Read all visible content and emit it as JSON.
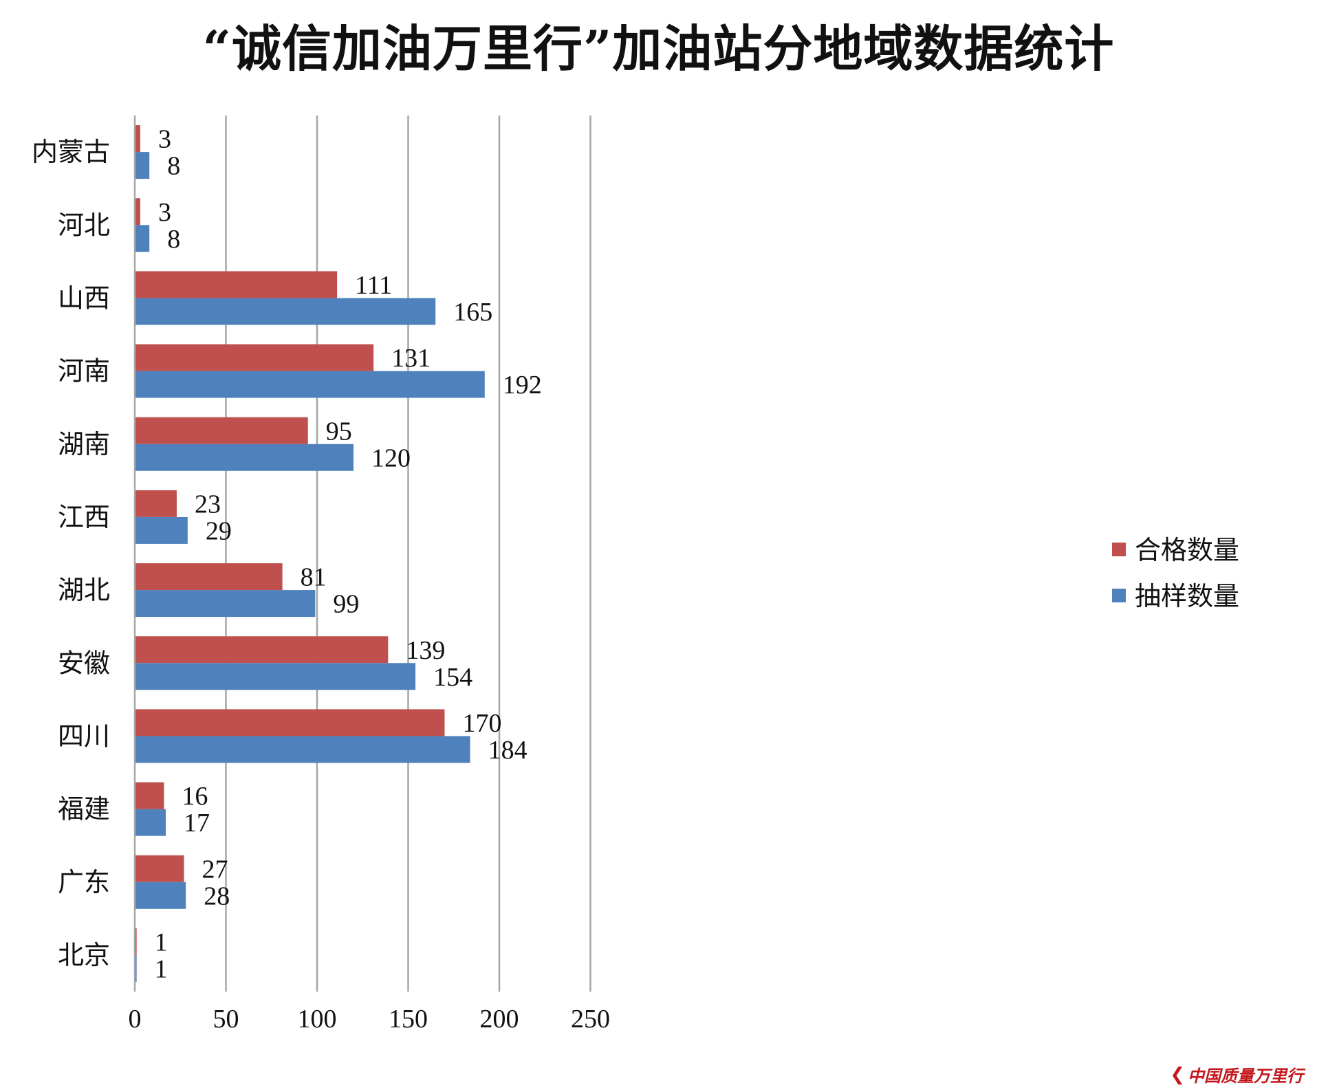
{
  "chart_data": {
    "type": "bar",
    "orientation": "horizontal",
    "title": "“诚信加油万里行”加油站分地域数据统计",
    "categories": [
      "内蒙古",
      "河北",
      "山西",
      "河南",
      "湖南",
      "江西",
      "湖北",
      "安徽",
      "四川",
      "福建",
      "广东",
      "北京"
    ],
    "series": [
      {
        "name": "合格数量",
        "color": "#c0504d",
        "values": [
          3,
          3,
          111,
          131,
          95,
          23,
          81,
          139,
          170,
          16,
          27,
          1
        ]
      },
      {
        "name": "抽样数量",
        "color": "#4f81bd",
        "values": [
          8,
          8,
          165,
          192,
          120,
          29,
          99,
          154,
          184,
          17,
          28,
          1
        ]
      }
    ],
    "xlim": [
      0,
      250
    ],
    "xticks": [
      0,
      50,
      100,
      150,
      200,
      250
    ],
    "grid": true,
    "legend_position": "right",
    "data_labels": true
  },
  "watermark": {
    "text": "中国质量万里行",
    "icon": "chevron-logo-icon"
  }
}
